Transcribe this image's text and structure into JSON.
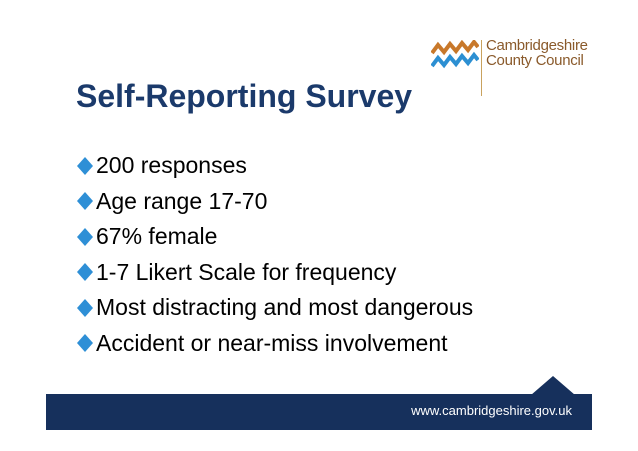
{
  "logo": {
    "line1": "Cambridgeshire",
    "line2": "County Council"
  },
  "slide": {
    "title": "Self-Reporting Survey",
    "bullets": [
      "200 responses",
      "Age range 17-70",
      "67% female",
      "1-7 Likert Scale for frequency",
      "Most distracting and most dangerous",
      "Accident or near-miss involvement"
    ]
  },
  "footer": {
    "url": "www.cambridgeshire.gov.uk"
  },
  "colors": {
    "title": "#1b3a6b",
    "bullet": "#2e8fd6",
    "footer_bar": "#16305c",
    "logo_orange": "#c8782a",
    "logo_blue": "#2c8fd2",
    "logo_text": "#8a5a2b"
  }
}
